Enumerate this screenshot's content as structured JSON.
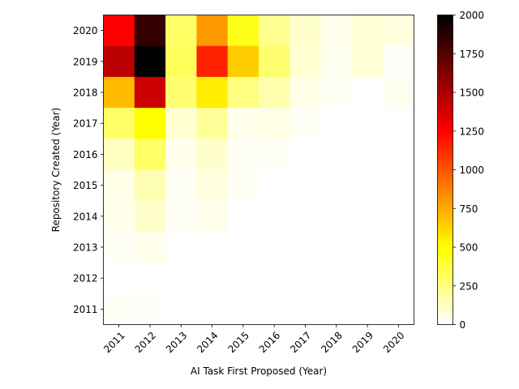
{
  "chart_data": {
    "type": "heatmap",
    "title": "",
    "xlabel": "AI Task First Proposed (Year)",
    "ylabel": "Repository Created (Year)",
    "x_categories": [
      "2011",
      "2012",
      "2013",
      "2014",
      "2015",
      "2016",
      "2017",
      "2018",
      "2019",
      "2020"
    ],
    "y_categories": [
      "2020",
      "2019",
      "2018",
      "2017",
      "2016",
      "2015",
      "2014",
      "2013",
      "2012",
      "2011"
    ],
    "values": [
      [
        1250,
        1850,
        300,
        800,
        450,
        220,
        100,
        40,
        80,
        60
      ],
      [
        1450,
        2000,
        320,
        1150,
        650,
        280,
        90,
        30,
        80,
        10
      ],
      [
        700,
        1400,
        280,
        550,
        250,
        160,
        50,
        20,
        0,
        30
      ],
      [
        300,
        500,
        90,
        200,
        40,
        50,
        20,
        0,
        0,
        0
      ],
      [
        120,
        300,
        40,
        100,
        20,
        15,
        0,
        0,
        0,
        0
      ],
      [
        50,
        150,
        20,
        60,
        20,
        0,
        0,
        0,
        0,
        0
      ],
      [
        40,
        100,
        20,
        40,
        0,
        0,
        0,
        0,
        0,
        0
      ],
      [
        20,
        40,
        0,
        0,
        0,
        0,
        0,
        0,
        0,
        0
      ],
      [
        0,
        0,
        0,
        0,
        0,
        0,
        0,
        0,
        0,
        0
      ],
      [
        15,
        10,
        0,
        0,
        0,
        0,
        0,
        0,
        0,
        0
      ]
    ],
    "colormap": "hot_r",
    "colorbar": {
      "range": [
        0,
        2000
      ],
      "ticks": [
        0,
        250,
        500,
        750,
        1000,
        1250,
        1500,
        1750,
        2000
      ]
    },
    "grid": false,
    "x_tick_rotation_deg": 45
  }
}
